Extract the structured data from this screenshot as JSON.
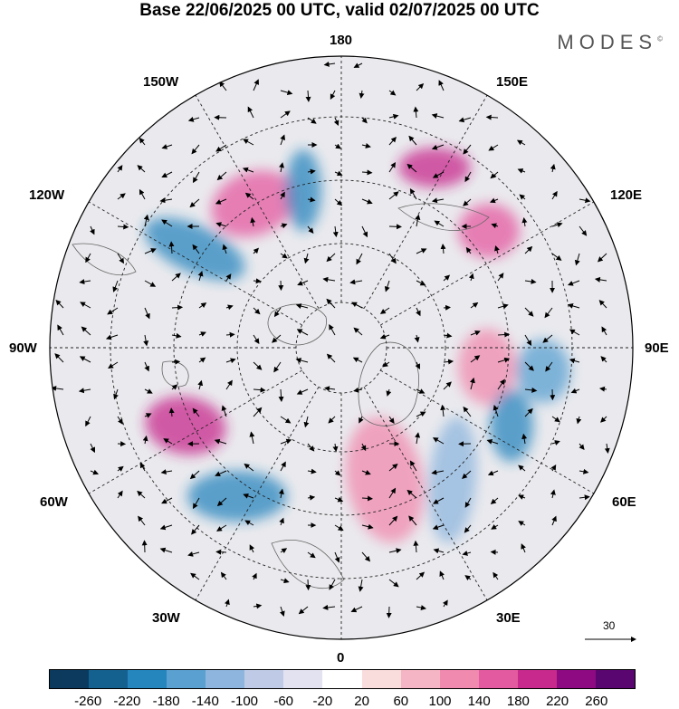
{
  "title": "Base 22/06/2025 00 UTC, valid 02/07/2025 00 UTC",
  "brand": "MODES",
  "brand_mark": "©",
  "lon_labels": {
    "n180": "180",
    "w150": "150W",
    "e150": "150E",
    "w120": "120W",
    "e120": "120E",
    "w90": "90W",
    "e90": "90E",
    "w60": "60W",
    "e60": "60E",
    "w30": "30W",
    "e30": "30E",
    "s0": "0"
  },
  "reference_vector": "30",
  "colorbar": {
    "ticks": [
      "-260",
      "-220",
      "-180",
      "-140",
      "-100",
      "-60",
      "-20",
      "20",
      "60",
      "100",
      "140",
      "180",
      "220",
      "260"
    ],
    "colors": [
      "#0b3a5e",
      "#14618f",
      "#2585bd",
      "#5aa0d0",
      "#8db5dd",
      "#bfcbe6",
      "#e2e2f0",
      "#ffffff",
      "#f9dcdc",
      "#f5b5c4",
      "#f08aae",
      "#e45aa0",
      "#c72a8c",
      "#8e0a82",
      "#5a0670"
    ]
  },
  "anomalies": [
    {
      "value": 140,
      "color": "#e45aa0"
    },
    {
      "value": -160,
      "color": "#2585bd"
    },
    {
      "value": 200,
      "color": "#c72a8c"
    },
    {
      "value": -180,
      "color": "#2585bd"
    },
    {
      "value": 120,
      "color": "#f08aae"
    },
    {
      "value": -80,
      "color": "#8db5dd"
    },
    {
      "value": 120,
      "color": "#f08aae"
    },
    {
      "value": -120,
      "color": "#5aa0d0"
    }
  ]
}
